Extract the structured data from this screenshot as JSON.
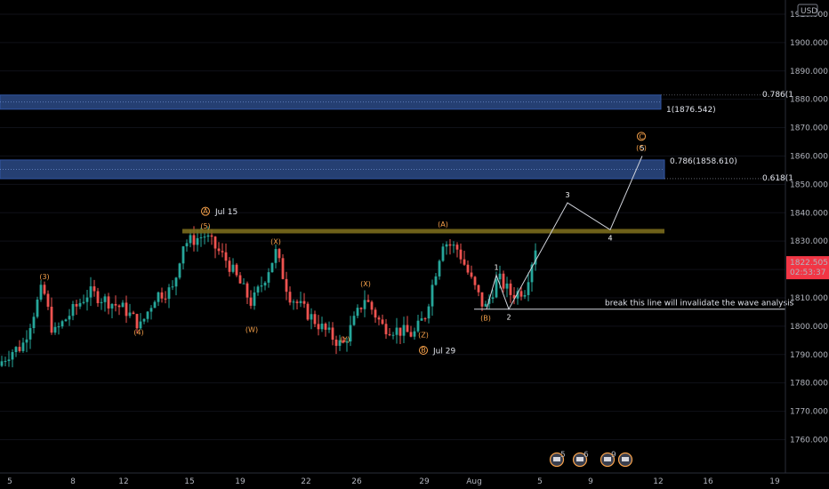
{
  "chart_data": {
    "type": "candlestick",
    "currency": "USD",
    "y_axis": {
      "range": [
        1752,
        1915
      ],
      "ticks": [
        1760,
        1770,
        1780,
        1790,
        1800,
        1810,
        1820,
        1830,
        1840,
        1850,
        1860,
        1870,
        1880,
        1890,
        1900,
        1910
      ],
      "tick_labels": [
        "1760.000",
        "1770.000",
        "1780.000",
        "1790.000",
        "1800.000",
        "1810.000",
        "1820.000",
        "1830.000",
        "1840.000",
        "1850.000",
        "1860.000",
        "1870.000",
        "1880.000",
        "1890.000",
        "1900.000",
        "1910.000"
      ]
    },
    "x_axis": {
      "ticks": [
        "5",
        "8",
        "12",
        "15",
        "19",
        "22",
        "26",
        "29",
        "Aug",
        "5",
        "9",
        "12",
        "16",
        "19"
      ]
    },
    "price_label": {
      "value": "1822.505",
      "countdown": "02:53:37"
    },
    "zones": [
      {
        "low": 1876.5,
        "high": 1881.5,
        "label": "0.786(1",
        "sublabel": "1(1876.542)"
      },
      {
        "low": 1852.0,
        "high": 1858.6,
        "label": "0.618(1",
        "sublabel": "0.786(1858.610)"
      }
    ],
    "resistance": {
      "value": 1833.5
    },
    "support": {
      "value": 1806.0,
      "label": "break this line will invalidate the wave analysis"
    },
    "projection": {
      "points": [
        1806,
        1818,
        1806,
        1843.5,
        1834,
        1860
      ],
      "labels": [
        "",
        "1",
        "2",
        "3",
        "4",
        "5"
      ]
    },
    "date_annotations": [
      {
        "circle": "A",
        "text": "Jul 15"
      },
      {
        "circle": "B",
        "text": "Jul 29"
      }
    ],
    "wave_labels": [
      {
        "text": "(3)",
        "price": 1816.5
      },
      {
        "text": "(4)",
        "price": 1797
      },
      {
        "text": "(5)",
        "price": 1834.5
      },
      {
        "text": "(X)",
        "price": 1829
      },
      {
        "text": "(W)",
        "price": 1798
      },
      {
        "text": "(X)",
        "price": 1814
      },
      {
        "text": "(Y)",
        "price": 1794.5
      },
      {
        "text": "(A)",
        "price": 1835
      },
      {
        "text": "(Z)",
        "price": 1796
      },
      {
        "text": "(B)",
        "price": 1802
      },
      {
        "text": "(C)",
        "price": 1862
      },
      {
        "text": "C",
        "price": 1866
      }
    ],
    "event_badges": [
      "5",
      "6",
      "9",
      ""
    ]
  },
  "colors": {
    "up": "#26a69a",
    "down": "#ef5350",
    "zone": "#2962ff",
    "resistance": "#7a6b1c",
    "wave": "#f7a14a"
  }
}
